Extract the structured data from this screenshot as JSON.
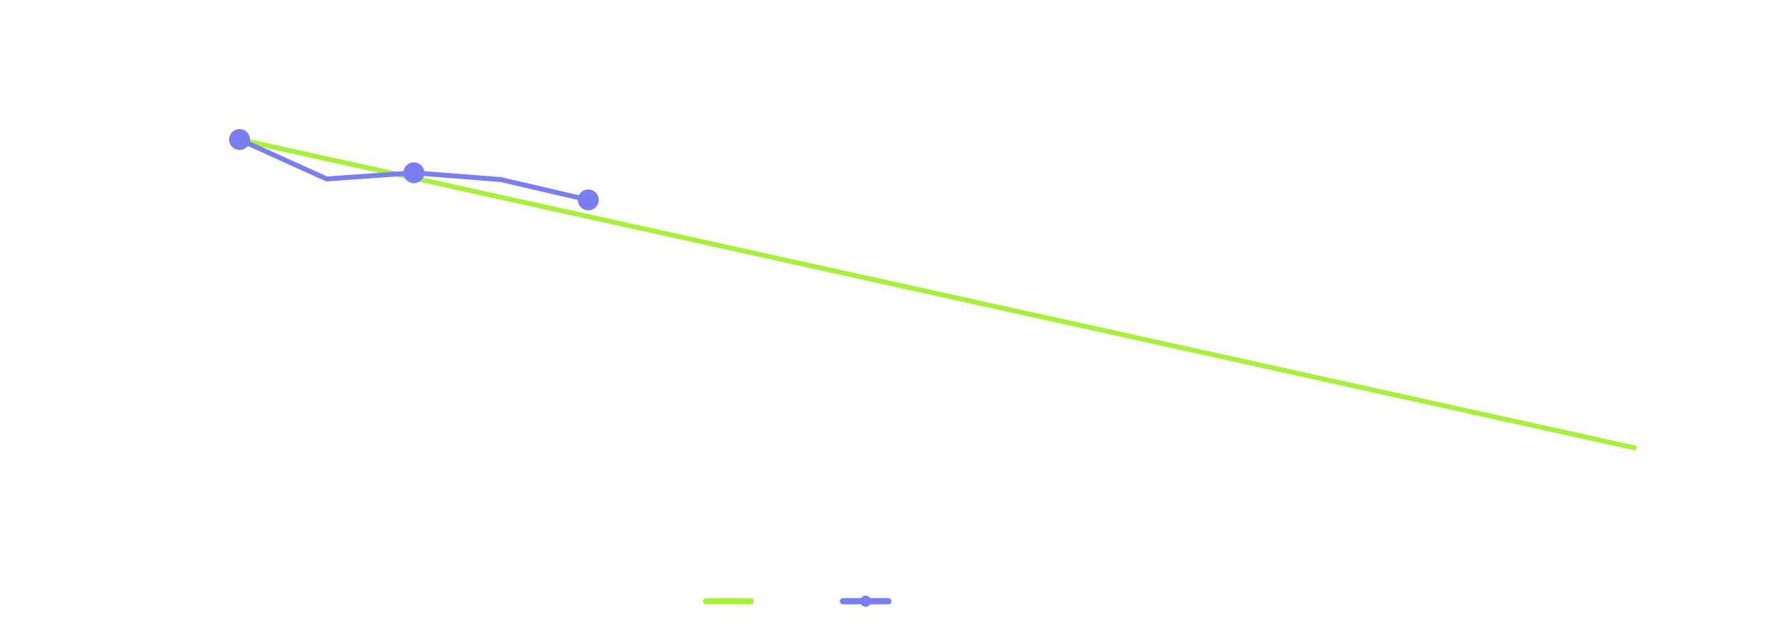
{
  "chart_data": {
    "type": "line",
    "title": "",
    "xlabel": "",
    "ylabel": "",
    "grid": false,
    "legend_position": "bottom-center",
    "colors": {
      "trend": "#a8f03a",
      "actual": "#7b7ef0"
    },
    "x": [
      0,
      1,
      2,
      3,
      4,
      5,
      6,
      7,
      8,
      9,
      10,
      11,
      12,
      13,
      14,
      15,
      16
    ],
    "series": [
      {
        "style": "line",
        "color": "#a8f03a",
        "marker": false,
        "points": [
          [
            0,
            100
          ],
          [
            16,
            50
          ]
        ]
      },
      {
        "style": "line-markers",
        "color": "#7b7ef0",
        "marker": true,
        "points": [
          [
            0,
            100
          ],
          [
            1,
            93.6
          ],
          [
            2,
            94.6
          ],
          [
            3,
            93.5
          ],
          [
            4,
            90.2
          ]
        ],
        "marked_x": [
          0,
          2,
          4
        ]
      }
    ],
    "xlim": [
      0,
      16
    ],
    "ylim": [
      0,
      120
    ]
  }
}
